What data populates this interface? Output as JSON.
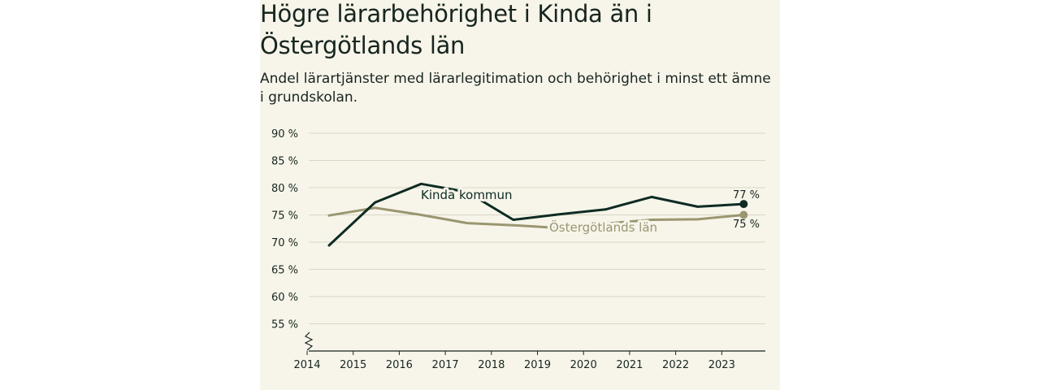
{
  "chart_data": {
    "type": "line",
    "title": "Högre lärarbehörighet i Kinda än i Östergötlands län",
    "subtitle": "Andel lärartjänster med lärarlegitimation och behörighet i minst ett ämne i grundskolan.",
    "x": [
      "2014",
      "2015",
      "2016",
      "2017",
      "2018",
      "2019",
      "2020",
      "2021",
      "2022",
      "2023"
    ],
    "y_ticks": [
      "90 %",
      "85 %",
      "80 %",
      "75 %",
      "70 %",
      "65 %",
      "60 %",
      "55 %"
    ],
    "y_tick_values": [
      90,
      85,
      80,
      75,
      70,
      65,
      60,
      55
    ],
    "ylim": [
      50,
      90
    ],
    "grid": true,
    "series": [
      {
        "name": "Kinda kommun",
        "color": "#0e2b23",
        "values": [
          69.4,
          77.3,
          80.7,
          79.2,
          74.1,
          75.1,
          76.0,
          78.3,
          76.5,
          77.0
        ],
        "end_label": "77 %"
      },
      {
        "name": "Östergötlands län",
        "color": "#9a9670",
        "values": [
          74.9,
          76.3,
          75.0,
          73.5,
          73.1,
          72.6,
          73.4,
          74.1,
          74.2,
          75.0
        ],
        "end_label": "75 %"
      }
    ]
  }
}
